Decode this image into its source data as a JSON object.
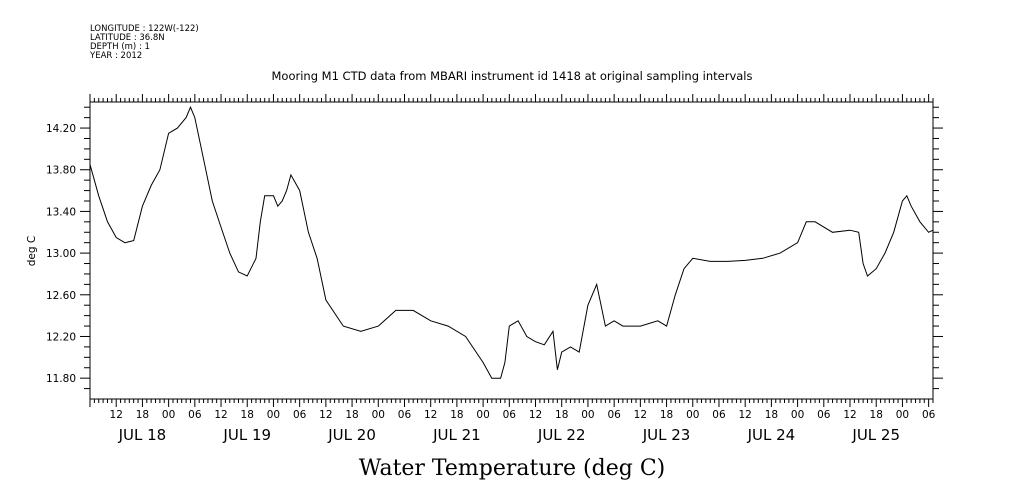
{
  "header": {
    "lines": [
      "LONGITUDE : 122W(-122)",
      "LATITUDE : 36.8N",
      "DEPTH (m) : 1",
      "YEAR : 2012"
    ]
  },
  "chart_data": {
    "type": "line",
    "title": "Mooring M1 CTD data from MBARI instrument id 1418 at original sampling intervals",
    "xlabel": "Water Temperature (deg C)",
    "ylabel": "deg C",
    "ylim": [
      11.6,
      14.45
    ],
    "yticks": [
      11.8,
      12.2,
      12.6,
      13.0,
      13.4,
      13.8,
      14.2
    ],
    "ytick_labels": [
      "11.80",
      "12.20",
      "12.60",
      "13.00",
      "13.40",
      "13.80",
      "14.20"
    ],
    "xlim": [
      "2012-07-17T06:00",
      "2012-07-25T07:00"
    ],
    "hour_tick_labels": [
      {
        "t": "2012-07-17T12:00",
        "label": "12"
      },
      {
        "t": "2012-07-17T18:00",
        "label": "18"
      },
      {
        "t": "2012-07-18T00:00",
        "label": "00"
      },
      {
        "t": "2012-07-18T06:00",
        "label": "06"
      },
      {
        "t": "2012-07-18T12:00",
        "label": "12"
      },
      {
        "t": "2012-07-18T18:00",
        "label": "18"
      },
      {
        "t": "2012-07-19T00:00",
        "label": "00"
      },
      {
        "t": "2012-07-19T06:00",
        "label": "06"
      },
      {
        "t": "2012-07-19T12:00",
        "label": "12"
      },
      {
        "t": "2012-07-19T18:00",
        "label": "18"
      },
      {
        "t": "2012-07-20T00:00",
        "label": "00"
      },
      {
        "t": "2012-07-20T06:00",
        "label": "06"
      },
      {
        "t": "2012-07-20T12:00",
        "label": "12"
      },
      {
        "t": "2012-07-20T18:00",
        "label": "18"
      },
      {
        "t": "2012-07-21T00:00",
        "label": "00"
      },
      {
        "t": "2012-07-21T06:00",
        "label": "06"
      },
      {
        "t": "2012-07-21T12:00",
        "label": "12"
      },
      {
        "t": "2012-07-21T18:00",
        "label": "18"
      },
      {
        "t": "2012-07-22T00:00",
        "label": "00"
      },
      {
        "t": "2012-07-22T06:00",
        "label": "06"
      },
      {
        "t": "2012-07-22T12:00",
        "label": "12"
      },
      {
        "t": "2012-07-22T18:00",
        "label": "18"
      },
      {
        "t": "2012-07-23T00:00",
        "label": "00"
      },
      {
        "t": "2012-07-23T06:00",
        "label": "06"
      },
      {
        "t": "2012-07-23T12:00",
        "label": "12"
      },
      {
        "t": "2012-07-23T18:00",
        "label": "18"
      },
      {
        "t": "2012-07-24T00:00",
        "label": "00"
      },
      {
        "t": "2012-07-24T06:00",
        "label": "06"
      },
      {
        "t": "2012-07-24T12:00",
        "label": "12"
      },
      {
        "t": "2012-07-24T18:00",
        "label": "18"
      },
      {
        "t": "2012-07-25T00:00",
        "label": "00"
      },
      {
        "t": "2012-07-25T06:00",
        "label": "06"
      }
    ],
    "day_labels": [
      {
        "t": "2012-07-17T18:00",
        "label": "JUL 18"
      },
      {
        "t": "2012-07-18T18:00",
        "label": "JUL 19"
      },
      {
        "t": "2012-07-19T18:00",
        "label": "JUL 20"
      },
      {
        "t": "2012-07-20T18:00",
        "label": "JUL 21"
      },
      {
        "t": "2012-07-21T18:00",
        "label": "JUL 22"
      },
      {
        "t": "2012-07-22T18:00",
        "label": "JUL 23"
      },
      {
        "t": "2012-07-23T18:00",
        "label": "JUL 24"
      },
      {
        "t": "2012-07-24T18:00",
        "label": "JUL 25"
      }
    ],
    "grid": false,
    "line_color": "#000000",
    "series": [
      {
        "x": [
          "2012-07-17T06:00",
          "2012-07-17T08:00",
          "2012-07-17T10:00",
          "2012-07-17T12:00",
          "2012-07-17T14:00",
          "2012-07-17T16:00",
          "2012-07-17T18:00",
          "2012-07-17T20:00",
          "2012-07-17T22:00",
          "2012-07-18T00:00",
          "2012-07-18T02:00",
          "2012-07-18T04:00",
          "2012-07-18T05:00",
          "2012-07-18T06:00",
          "2012-07-18T08:00",
          "2012-07-18T10:00",
          "2012-07-18T12:00",
          "2012-07-18T14:00",
          "2012-07-18T16:00",
          "2012-07-18T18:00",
          "2012-07-18T20:00",
          "2012-07-18T21:00",
          "2012-07-18T22:00",
          "2012-07-19T00:00",
          "2012-07-19T01:00",
          "2012-07-19T02:00",
          "2012-07-19T03:00",
          "2012-07-19T04:00",
          "2012-07-19T06:00",
          "2012-07-19T08:00",
          "2012-07-19T10:00",
          "2012-07-19T12:00",
          "2012-07-19T16:00",
          "2012-07-19T20:00",
          "2012-07-20T00:00",
          "2012-07-20T04:00",
          "2012-07-20T08:00",
          "2012-07-20T12:00",
          "2012-07-20T16:00",
          "2012-07-20T20:00",
          "2012-07-21T00:00",
          "2012-07-21T02:00",
          "2012-07-21T04:00",
          "2012-07-21T05:00",
          "2012-07-21T06:00",
          "2012-07-21T08:00",
          "2012-07-21T10:00",
          "2012-07-21T12:00",
          "2012-07-21T14:00",
          "2012-07-21T16:00",
          "2012-07-21T17:00",
          "2012-07-21T18:00",
          "2012-07-21T20:00",
          "2012-07-21T22:00",
          "2012-07-22T00:00",
          "2012-07-22T02:00",
          "2012-07-22T04:00",
          "2012-07-22T06:00",
          "2012-07-22T08:00",
          "2012-07-22T12:00",
          "2012-07-22T16:00",
          "2012-07-22T18:00",
          "2012-07-22T20:00",
          "2012-07-22T22:00",
          "2012-07-23T00:00",
          "2012-07-23T04:00",
          "2012-07-23T08:00",
          "2012-07-23T12:00",
          "2012-07-23T16:00",
          "2012-07-23T20:00",
          "2012-07-24T00:00",
          "2012-07-24T02:00",
          "2012-07-24T04:00",
          "2012-07-24T08:00",
          "2012-07-24T12:00",
          "2012-07-24T14:00",
          "2012-07-24T15:00",
          "2012-07-24T16:00",
          "2012-07-24T18:00",
          "2012-07-24T20:00",
          "2012-07-24T22:00",
          "2012-07-25T00:00",
          "2012-07-25T01:00",
          "2012-07-25T02:00",
          "2012-07-25T04:00",
          "2012-07-25T06:00",
          "2012-07-25T07:00"
        ],
        "y": [
          13.85,
          13.55,
          13.3,
          13.15,
          13.1,
          13.12,
          13.45,
          13.65,
          13.8,
          14.15,
          14.2,
          14.3,
          14.4,
          14.3,
          13.9,
          13.5,
          13.25,
          13.0,
          12.82,
          12.78,
          12.95,
          13.3,
          13.55,
          13.55,
          13.45,
          13.5,
          13.6,
          13.75,
          13.6,
          13.2,
          12.95,
          12.55,
          12.3,
          12.25,
          12.3,
          12.45,
          12.45,
          12.35,
          12.3,
          12.2,
          11.95,
          11.8,
          11.8,
          11.95,
          12.3,
          12.35,
          12.2,
          12.15,
          12.12,
          12.25,
          11.88,
          12.05,
          12.1,
          12.05,
          12.5,
          12.7,
          12.3,
          12.35,
          12.3,
          12.3,
          12.35,
          12.3,
          12.6,
          12.85,
          12.95,
          12.92,
          12.92,
          12.93,
          12.95,
          13.0,
          13.1,
          13.3,
          13.3,
          13.2,
          13.22,
          13.2,
          12.9,
          12.78,
          12.85,
          13.0,
          13.2,
          13.5,
          13.55,
          13.45,
          13.3,
          13.2,
          13.22
        ]
      }
    ]
  }
}
